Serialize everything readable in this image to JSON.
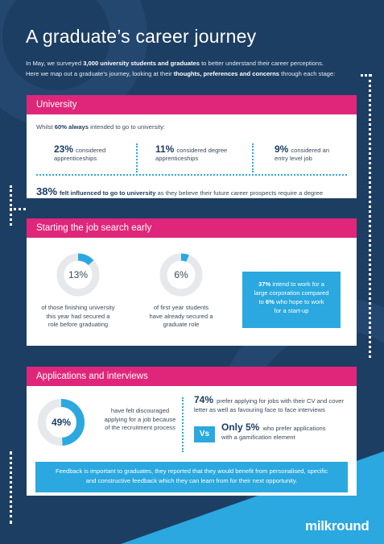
{
  "page": {
    "title": "A graduate’s career journey",
    "intro": {
      "t1": "In May, we surveyed ",
      "t2": "3,000 university students and graduates",
      "t3": " to better understand their career perceptions.",
      "t4": "Here we map out a graduate’s journey, looking at their ",
      "t5": "thoughts, preferences and concerns",
      "t6": " through each stage:"
    }
  },
  "university": {
    "heading": "University",
    "lead_pre": "Whilst ",
    "lead_bold": "60% always",
    "lead_post": " intended to go to university:",
    "stats": [
      {
        "value": "23%",
        "text_a": "considered",
        "text_b": "apprenticeships"
      },
      {
        "value": "11%",
        "text_a": "considered degree",
        "text_b": "apprenticeships"
      },
      {
        "value": "9%",
        "text_a": "considered an",
        "text_b": "entry level job"
      }
    ],
    "footer_value": "38%",
    "footer_bold": "felt influenced to go to university",
    "footer_text": " as they believe their future career prospects require a degree"
  },
  "job_search": {
    "heading": "Starting the job search early",
    "donuts": [
      {
        "label": "13%",
        "fraction": 0.13,
        "cap_1": "of those finishing university",
        "cap_2": "this year had secured a",
        "cap_3": "role before graduating"
      },
      {
        "label": "6%",
        "fraction": 0.06,
        "cap_1": "of first year students",
        "cap_2": "have already secured a",
        "cap_3": "graduate role"
      }
    ],
    "box": {
      "v1": "37%",
      "t1": " intend to work for a",
      "t2": "large corporation compared",
      "t3": "to ",
      "v2": "6%",
      "t4": " who hope to work",
      "t5": "for a start-up"
    }
  },
  "applications": {
    "heading": "Applications and interviews",
    "donut": {
      "label": "49%",
      "fraction": 0.49
    },
    "donut_text_1": "have felt discouraged",
    "donut_text_2": "applying for a job because",
    "donut_text_3": "of the recruitment process",
    "pref_value": "74%",
    "pref_t1": " prefer applying for jobs with their CV and cover",
    "pref_t2": "letter as well as favouring face to face interviews",
    "vs": "Vs",
    "only_bold": "Only 5%",
    "only_t1": " who prefer applications",
    "only_t2": "with a gamification element"
  },
  "feedback": {
    "line1": "Feedback is important to graduates, they reported that they would benefit from personalised, specific",
    "line2": "and constructive feedback which they can learn from for their next opportunity."
  },
  "brand": {
    "logo": "milkround"
  },
  "colors": {
    "navy": "#1d3e63",
    "pink": "#e0267a",
    "cyan": "#2aa8df",
    "grey_ring": "#e6e8eb"
  }
}
